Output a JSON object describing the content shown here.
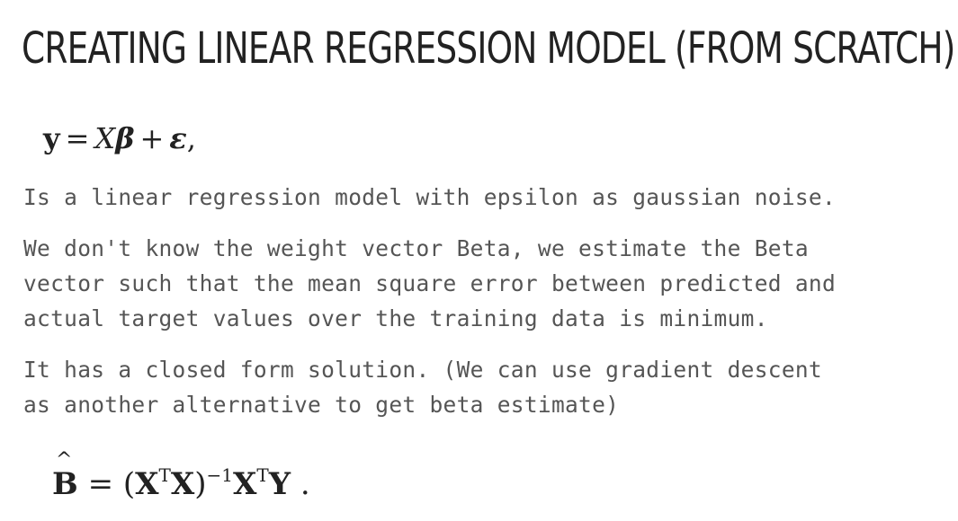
{
  "slide": {
    "title": "CREATING LINEAR REGRESSION MODEL (FROM SCRATCH)",
    "equation_model": {
      "y": "y",
      "equals": "=",
      "X": "X",
      "beta": "β",
      "plus": "+",
      "epsilon": "ε",
      "comma": ","
    },
    "paragraph_1": "Is a linear regression model with epsilon as gaussian noise.",
    "paragraph_2": {
      "line_1": "We don't know the weight vector Beta, we estimate the Beta",
      "line_2": "vector such that the mean square error between predicted and",
      "line_3": "actual target values over the training data is minimum."
    },
    "paragraph_3": {
      "line_1": "It has a closed form solution. (We can use gradient descent",
      "line_2": "as another alternative to get beta estimate)"
    },
    "equation_solution": {
      "B_hat": "B",
      "equals": "=",
      "open_paren": "(",
      "XT": "X",
      "T1": "T",
      "X": "X",
      "close_paren": ")",
      "inv": "−1",
      "XT2": "X",
      "T2": "T",
      "Y": "Y",
      "period": "."
    }
  }
}
